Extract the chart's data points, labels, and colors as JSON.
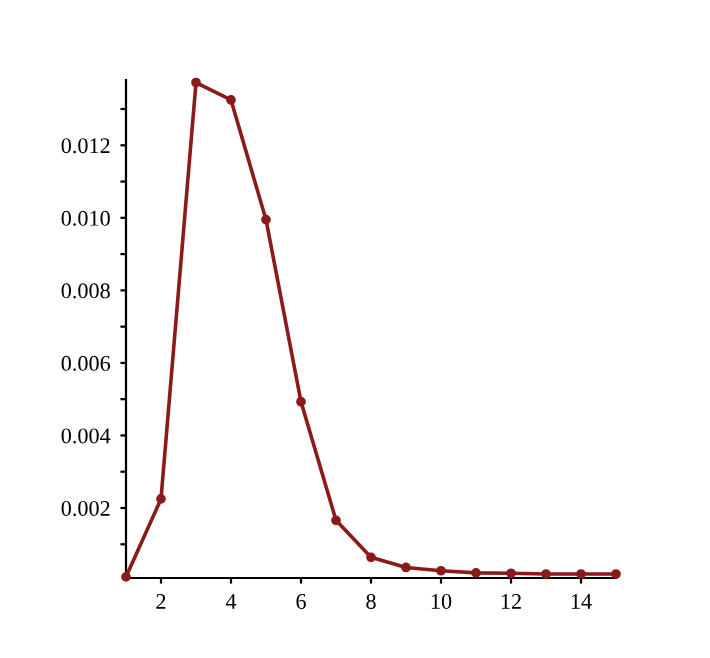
{
  "chart_data": {
    "type": "line",
    "x": [
      1,
      2,
      3,
      4,
      5,
      6,
      7,
      8,
      9,
      10,
      11,
      12,
      13,
      14,
      15
    ],
    "series": [
      {
        "color": "#8b1a1a",
        "values": [
          0.0001,
          0.00225,
          0.01373,
          0.01325,
          0.00995,
          0.00493,
          0.00166,
          0.00064,
          0.00036,
          0.00027,
          0.00021,
          0.0002,
          0.00018,
          0.00018,
          0.00018
        ]
      }
    ],
    "xlim": [
      1,
      15
    ],
    "ylim": [
      7e-05,
      0.0138
    ],
    "xticks": [
      2,
      4,
      6,
      8,
      10,
      12,
      14
    ],
    "yticks": [
      {
        "value": 0.001,
        "label": null
      },
      {
        "value": 0.002,
        "label": "0.002"
      },
      {
        "value": 0.003,
        "label": null
      },
      {
        "value": 0.004,
        "label": "0.004"
      },
      {
        "value": 0.005,
        "label": null
      },
      {
        "value": 0.006,
        "label": "0.006"
      },
      {
        "value": 0.007,
        "label": null
      },
      {
        "value": 0.008,
        "label": "0.008"
      },
      {
        "value": 0.009,
        "label": null
      },
      {
        "value": 0.01,
        "label": "0.010"
      },
      {
        "value": 0.011,
        "label": null
      },
      {
        "value": 0.012,
        "label": "0.012"
      },
      {
        "value": 0.013,
        "label": null
      }
    ],
    "marker": "circle",
    "line_style": "solid",
    "grid": false,
    "legend": false
  }
}
